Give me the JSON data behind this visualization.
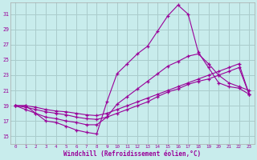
{
  "xlabel": "Windchill (Refroidissement éolien,°C)",
  "bg_color": "#c8ecec",
  "grid_color": "#aacccc",
  "line_color": "#990099",
  "x_ticks": [
    0,
    1,
    2,
    3,
    4,
    5,
    6,
    7,
    8,
    9,
    10,
    11,
    12,
    13,
    14,
    15,
    16,
    17,
    18,
    19,
    20,
    21,
    22,
    23
  ],
  "y_ticks": [
    15,
    17,
    19,
    21,
    23,
    25,
    27,
    29,
    31
  ],
  "ylim": [
    14.0,
    32.5
  ],
  "xlim": [
    -0.5,
    23.5
  ],
  "line1_x": [
    0,
    1,
    2,
    3,
    4,
    5,
    6,
    7,
    8,
    9,
    10,
    11,
    12,
    13,
    14,
    15,
    16,
    17,
    18,
    19,
    20,
    21,
    22,
    23
  ],
  "line1_y": [
    19.0,
    19.0,
    18.0,
    17.0,
    16.8,
    16.3,
    15.8,
    15.5,
    15.3,
    19.5,
    23.2,
    24.5,
    25.8,
    26.8,
    28.8,
    30.8,
    32.2,
    31.0,
    26.0,
    24.0,
    22.0,
    21.5,
    21.3,
    20.5
  ],
  "line2_x": [
    0,
    1,
    2,
    3,
    4,
    5,
    6,
    7,
    8,
    9,
    10,
    11,
    12,
    13,
    14,
    15,
    16,
    17,
    18,
    19,
    20,
    21,
    22,
    23
  ],
  "line2_y": [
    19.0,
    18.5,
    18.0,
    17.5,
    17.3,
    17.0,
    16.8,
    16.5,
    16.5,
    17.5,
    19.2,
    20.2,
    21.2,
    22.2,
    23.2,
    24.2,
    24.8,
    25.5,
    25.8,
    24.5,
    23.0,
    22.0,
    21.5,
    21.0
  ],
  "line3_x": [
    0,
    1,
    2,
    3,
    4,
    5,
    6,
    7,
    8,
    9,
    10,
    11,
    12,
    13,
    14,
    15,
    16,
    17,
    18,
    19,
    20,
    21,
    22,
    23
  ],
  "line3_y": [
    19.0,
    18.8,
    18.5,
    18.2,
    18.0,
    17.8,
    17.5,
    17.3,
    17.2,
    17.5,
    18.0,
    18.5,
    19.0,
    19.5,
    20.2,
    20.8,
    21.2,
    21.8,
    22.2,
    22.5,
    23.0,
    23.5,
    24.0,
    20.5
  ],
  "line4_x": [
    0,
    1,
    2,
    3,
    4,
    5,
    6,
    7,
    8,
    9,
    10,
    11,
    12,
    13,
    14,
    15,
    16,
    17,
    18,
    19,
    20,
    21,
    22,
    23
  ],
  "line4_y": [
    19.0,
    19.0,
    18.8,
    18.5,
    18.3,
    18.2,
    18.0,
    17.8,
    17.7,
    18.0,
    18.5,
    19.0,
    19.5,
    20.0,
    20.5,
    21.0,
    21.5,
    22.0,
    22.5,
    23.0,
    23.5,
    24.0,
    24.5,
    20.5
  ]
}
